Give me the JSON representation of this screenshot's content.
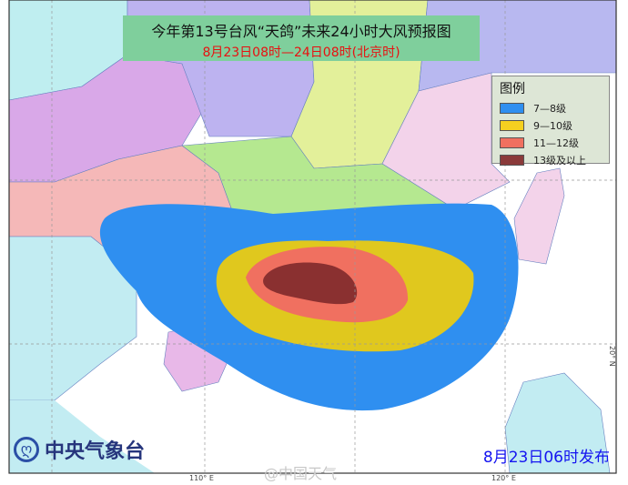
{
  "title": "今年第13号台风“天鸽”未来24小时大风预报图",
  "subtitle": "8月23日08时—24日08时(北京时)",
  "legend": {
    "title": "图例",
    "items": [
      {
        "label": "7—8级",
        "color": "#2f8ff0"
      },
      {
        "label": "9—10级",
        "color": "#e0c81e"
      },
      {
        "label": "11—12级",
        "color": "#f07060"
      },
      {
        "label": "13级及以上",
        "color": "#8a3030"
      }
    ]
  },
  "axis_labels": {
    "lon_110": "110° E",
    "lon_120": "120° E",
    "lat_20": "20° N"
  },
  "organization": "中央气象台",
  "issued": "8月23日06时发布",
  "watermark": "@中国天气"
}
